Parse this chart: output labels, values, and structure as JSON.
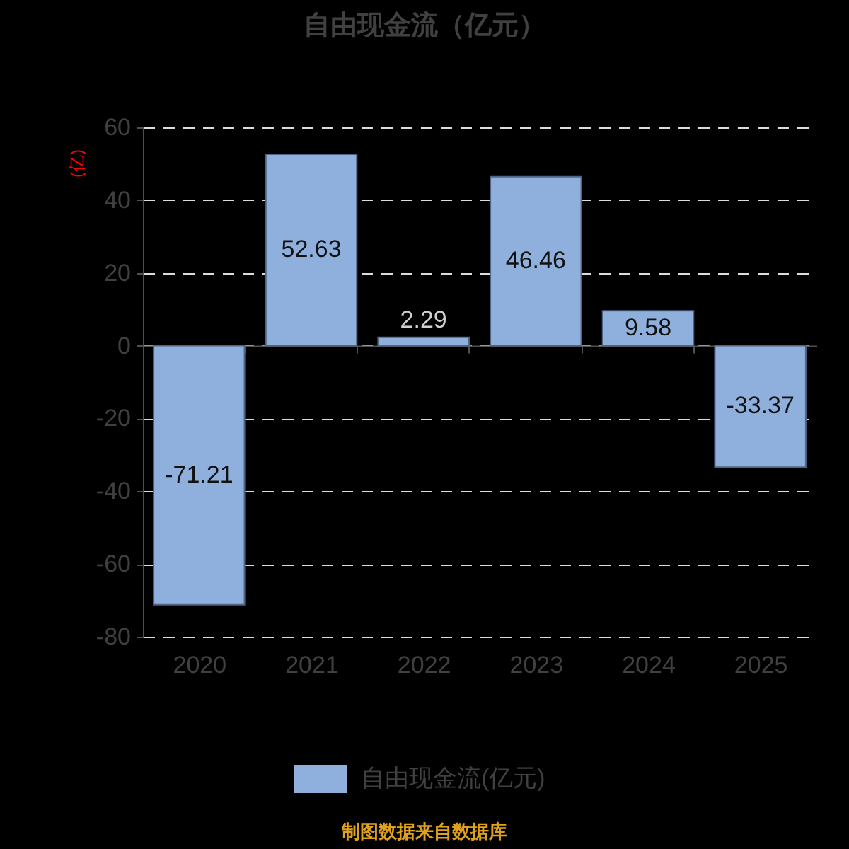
{
  "chart_data": {
    "type": "bar",
    "title": "自由现金流（亿元）",
    "ylabel": "(亿)",
    "categories": [
      "2020",
      "2021",
      "2022",
      "2023",
      "2024",
      "2025"
    ],
    "series": [
      {
        "name": "自由现金流(亿元)",
        "color": "#8fb0dd",
        "values": [
          -71.21,
          52.63,
          2.29,
          46.46,
          9.58,
          -33.37
        ]
      }
    ],
    "ylim": [
      -80,
      60
    ],
    "yticks": [
      -80,
      -60,
      -40,
      -20,
      0,
      20,
      40,
      60
    ],
    "grid": "y",
    "legend": "bottom",
    "data_labels": true,
    "annotations": [
      "制图数据来自数据库"
    ]
  }
}
